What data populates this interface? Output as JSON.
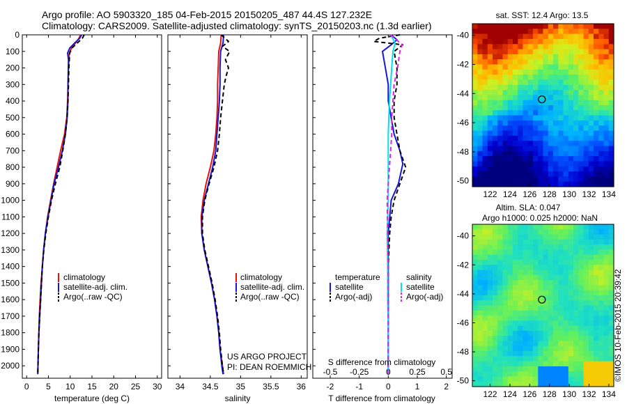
{
  "title": {
    "line1": "Argo profile: AO 5903320_185 04-Feb-2015 20150205_487 44.4S 127.232E",
    "line2": "Climatology: CARS2009. Satellite-adjusted climatology: synTS_20150203.nc (1.3d earlier)"
  },
  "chart_data": [
    {
      "type": "line",
      "id": "temperature",
      "xlabel": "temperature (deg C)",
      "xlim": [
        -1,
        31
      ],
      "xticks": [
        "0",
        "5",
        "10",
        "15",
        "20",
        "25",
        "30"
      ],
      "ylim": [
        2075,
        0
      ],
      "yticks": [
        "0",
        "100",
        "200",
        "300",
        "400",
        "500",
        "600",
        "700",
        "800",
        "900",
        "1000",
        "1100",
        "1200",
        "1300",
        "1400",
        "1500",
        "1600",
        "1700",
        "1800",
        "1900",
        "2000"
      ],
      "legend": [
        "climatology",
        "satellite-adj. clim.",
        "Argo(..raw -QC)"
      ],
      "series": [
        {
          "name": "climatology",
          "color": "#e8120c",
          "points": [
            [
              12.4,
              0
            ],
            [
              12.0,
              20
            ],
            [
              11.2,
              50
            ],
            [
              10.3,
              80
            ],
            [
              9.8,
              110
            ],
            [
              9.6,
              200
            ],
            [
              9.5,
              300
            ],
            [
              9.4,
              400
            ],
            [
              9.2,
              500
            ],
            [
              8.7,
              600
            ],
            [
              7.8,
              700
            ],
            [
              7.0,
              800
            ],
            [
              6.2,
              900
            ],
            [
              5.5,
              1000
            ],
            [
              4.8,
              1100
            ],
            [
              4.3,
              1200
            ],
            [
              3.9,
              1300
            ],
            [
              3.6,
              1400
            ],
            [
              3.3,
              1500
            ],
            [
              3.1,
              1600
            ],
            [
              2.9,
              1700
            ],
            [
              2.8,
              1800
            ],
            [
              2.7,
              1900
            ],
            [
              2.6,
              2000
            ],
            [
              2.55,
              2050
            ]
          ]
        },
        {
          "name": "satellite-adj. clim.",
          "color": "#1515d8",
          "points": [
            [
              12.6,
              0
            ],
            [
              12.2,
              20
            ],
            [
              11.0,
              50
            ],
            [
              9.9,
              80
            ],
            [
              9.4,
              110
            ],
            [
              9.6,
              150
            ],
            [
              9.5,
              300
            ],
            [
              9.5,
              400
            ],
            [
              9.3,
              500
            ],
            [
              8.9,
              600
            ],
            [
              8.2,
              700
            ],
            [
              7.3,
              800
            ],
            [
              6.3,
              900
            ],
            [
              5.6,
              1000
            ],
            [
              4.9,
              1100
            ],
            [
              4.3,
              1200
            ],
            [
              3.9,
              1300
            ],
            [
              3.6,
              1400
            ],
            [
              3.4,
              1500
            ],
            [
              3.2,
              1600
            ],
            [
              3.0,
              1700
            ],
            [
              2.8,
              1800
            ],
            [
              2.7,
              1900
            ],
            [
              2.6,
              2000
            ],
            [
              2.55,
              2050
            ]
          ]
        },
        {
          "name": "Argo(..raw -QC)",
          "color": "#000000",
          "dashed": true,
          "points": [
            [
              13.2,
              0
            ],
            [
              12.8,
              20
            ],
            [
              11.6,
              50
            ],
            [
              10.4,
              80
            ],
            [
              9.9,
              110
            ],
            [
              9.8,
              150
            ],
            [
              9.7,
              200
            ],
            [
              9.6,
              300
            ],
            [
              9.5,
              400
            ],
            [
              9.3,
              500
            ],
            [
              8.9,
              600
            ],
            [
              8.3,
              700
            ],
            [
              7.6,
              800
            ],
            [
              6.6,
              900
            ],
            [
              5.7,
              1000
            ],
            [
              5.0,
              1100
            ],
            [
              4.4,
              1200
            ],
            [
              3.95,
              1300
            ],
            [
              3.6,
              1400
            ],
            [
              3.4,
              1500
            ],
            [
              3.2,
              1600
            ],
            [
              3.0,
              1700
            ],
            [
              2.8,
              1800
            ],
            [
              2.7,
              1900
            ],
            [
              2.6,
              2000
            ],
            [
              2.55,
              2050
            ]
          ]
        }
      ]
    },
    {
      "type": "line",
      "id": "salinity",
      "xlabel": "salinity",
      "xlim": [
        33.8,
        36.1
      ],
      "xticks": [
        "34",
        "34.5",
        "35",
        "35.5",
        "36"
      ],
      "ylim": [
        2075,
        0
      ],
      "legend": [
        "climatology",
        "satellite-adj. clim.",
        "Argo(..raw -QC)"
      ],
      "series": [
        {
          "name": "climatology",
          "color": "#e8120c",
          "points": [
            [
              34.68,
              0
            ],
            [
              34.67,
              50
            ],
            [
              34.64,
              100
            ],
            [
              34.63,
              200
            ],
            [
              34.62,
              300
            ],
            [
              34.62,
              400
            ],
            [
              34.61,
              500
            ],
            [
              34.59,
              600
            ],
            [
              34.56,
              700
            ],
            [
              34.5,
              800
            ],
            [
              34.43,
              900
            ],
            [
              34.38,
              1000
            ],
            [
              34.35,
              1100
            ],
            [
              34.36,
              1200
            ],
            [
              34.4,
              1300
            ],
            [
              34.46,
              1400
            ],
            [
              34.52,
              1500
            ],
            [
              34.57,
              1600
            ],
            [
              34.61,
              1700
            ],
            [
              34.64,
              1800
            ],
            [
              34.66,
              1900
            ],
            [
              34.7,
              2000
            ],
            [
              34.72,
              2050
            ]
          ]
        },
        {
          "name": "satellite-adj. clim.",
          "color": "#1515d8",
          "points": [
            [
              34.72,
              0
            ],
            [
              34.71,
              50
            ],
            [
              34.67,
              100
            ],
            [
              34.66,
              200
            ],
            [
              34.66,
              300
            ],
            [
              34.65,
              400
            ],
            [
              34.63,
              500
            ],
            [
              34.61,
              600
            ],
            [
              34.59,
              700
            ],
            [
              34.54,
              800
            ],
            [
              34.47,
              900
            ],
            [
              34.4,
              1000
            ],
            [
              34.36,
              1100
            ],
            [
              34.36,
              1200
            ],
            [
              34.4,
              1300
            ],
            [
              34.46,
              1400
            ],
            [
              34.52,
              1500
            ],
            [
              34.57,
              1600
            ],
            [
              34.61,
              1700
            ],
            [
              34.64,
              1800
            ],
            [
              34.66,
              1900
            ],
            [
              34.69,
              2000
            ],
            [
              34.71,
              2050
            ]
          ]
        },
        {
          "name": "Argo(..raw -QC)",
          "color": "#000000",
          "dashed": true,
          "points": [
            [
              34.68,
              0
            ],
            [
              34.8,
              40
            ],
            [
              34.7,
              70
            ],
            [
              34.82,
              100
            ],
            [
              34.75,
              150
            ],
            [
              34.8,
              200
            ],
            [
              34.76,
              250
            ],
            [
              34.73,
              300
            ],
            [
              34.7,
              400
            ],
            [
              34.67,
              500
            ],
            [
              34.65,
              600
            ],
            [
              34.62,
              700
            ],
            [
              34.56,
              800
            ],
            [
              34.48,
              900
            ],
            [
              34.41,
              1000
            ],
            [
              34.37,
              1100
            ],
            [
              34.37,
              1200
            ],
            [
              34.41,
              1300
            ],
            [
              34.47,
              1400
            ],
            [
              34.53,
              1500
            ],
            [
              34.58,
              1600
            ],
            [
              34.62,
              1700
            ],
            [
              34.65,
              1800
            ],
            [
              34.67,
              1900
            ],
            [
              34.7,
              2000
            ],
            [
              34.72,
              2050
            ]
          ]
        }
      ],
      "annotation": [
        "US ARGO PROJECT",
        "PI: DEAN ROEMMICH"
      ]
    },
    {
      "type": "line",
      "id": "difference",
      "xlabel": "T difference from climatology",
      "xlabel2": "S difference from climatology",
      "xlim": [
        -2.6,
        2.2
      ],
      "xticks": [
        "-2",
        "-1",
        "0",
        "1",
        "2"
      ],
      "xlim2": [
        -0.65,
        0.55
      ],
      "xticks2": [
        "-0.5",
        "-0.25",
        "0",
        "0.25",
        "0.5"
      ],
      "ylim": [
        2075,
        0
      ],
      "legend_temperature_heading": "temperature",
      "legend_salinity_heading": "salinity",
      "legend_temperature": [
        "satellite",
        "Argo(-adj)"
      ],
      "legend_salinity": [
        "satellite",
        "Argo(-adj)"
      ],
      "series": [
        {
          "name": "T satellite",
          "color": "#1515d8",
          "axis": "T",
          "points": [
            [
              0.1,
              0
            ],
            [
              0.3,
              30
            ],
            [
              0.1,
              60
            ],
            [
              -0.2,
              100
            ],
            [
              -0.1,
              200
            ],
            [
              0,
              300
            ],
            [
              0,
              400
            ],
            [
              0.1,
              500
            ],
            [
              0.2,
              600
            ],
            [
              0.4,
              700
            ],
            [
              0.5,
              780
            ],
            [
              0.35,
              900
            ],
            [
              0.1,
              1000
            ],
            [
              0.05,
              1100
            ],
            [
              0,
              1200
            ],
            [
              0,
              1400
            ],
            [
              0,
              1600
            ],
            [
              0,
              1800
            ],
            [
              0,
              2000
            ],
            [
              0,
              2050
            ]
          ]
        },
        {
          "name": "T Argo(-adj)",
          "color": "#000000",
          "dashed": true,
          "axis": "T",
          "points": [
            [
              0.4,
              0
            ],
            [
              -0.3,
              20
            ],
            [
              -0.5,
              40
            ],
            [
              0.5,
              60
            ],
            [
              0.2,
              100
            ],
            [
              0.3,
              200
            ],
            [
              0.3,
              300
            ],
            [
              0.2,
              400
            ],
            [
              0.2,
              500
            ],
            [
              0.3,
              600
            ],
            [
              0.4,
              700
            ],
            [
              0.6,
              800
            ],
            [
              0.4,
              900
            ],
            [
              0.2,
              1000
            ],
            [
              0.1,
              1100
            ],
            [
              0.05,
              1200
            ],
            [
              0,
              1400
            ],
            [
              0,
              1600
            ],
            [
              0,
              1800
            ],
            [
              0,
              2000
            ],
            [
              0,
              2050
            ]
          ]
        },
        {
          "name": "S satellite",
          "color": "#00e0f0",
          "axis": "S",
          "points": [
            [
              0.02,
              0
            ],
            [
              0.06,
              50
            ],
            [
              0.04,
              100
            ],
            [
              0.03,
              200
            ],
            [
              0.02,
              300
            ],
            [
              0.01,
              400
            ],
            [
              0.0,
              600
            ],
            [
              0.0,
              800
            ],
            [
              0.0,
              1000
            ],
            [
              -0.01,
              1200
            ],
            [
              -0.005,
              1400
            ],
            [
              -0.005,
              1600
            ],
            [
              0,
              1800
            ],
            [
              0,
              2000
            ],
            [
              0,
              2050
            ]
          ]
        },
        {
          "name": "S Argo(-adj)",
          "color": "#e020e0",
          "dashed": true,
          "axis": "S",
          "points": [
            [
              0.02,
              0
            ],
            [
              0.12,
              60
            ],
            [
              0.1,
              100
            ],
            [
              0.08,
              200
            ],
            [
              0.05,
              300
            ],
            [
              0.04,
              400
            ],
            [
              0.03,
              500
            ],
            [
              0.03,
              600
            ],
            [
              0.02,
              700
            ],
            [
              0.01,
              800
            ],
            [
              0,
              900
            ],
            [
              -0.01,
              1000
            ],
            [
              -0.005,
              1200
            ],
            [
              0,
              1400
            ],
            [
              0,
              1600
            ],
            [
              0,
              1800
            ],
            [
              0,
              2000
            ],
            [
              0,
              2050
            ]
          ]
        }
      ]
    },
    {
      "type": "heatmap",
      "id": "sst-map",
      "title": "sat. SST: 12.4  Argo: 13.5",
      "xticks": [
        "122",
        "124",
        "126",
        "128",
        "130",
        "132",
        "134"
      ],
      "yticks": [
        "-40",
        "-42",
        "-44",
        "-46",
        "-48",
        "-50"
      ],
      "xlim": [
        120.2,
        134.5
      ],
      "ylim": [
        -50.4,
        -39.2
      ],
      "marker": [
        127.232,
        -44.4
      ]
    },
    {
      "type": "heatmap",
      "id": "sla-map",
      "title_line1": "Altim. SLA: 0.047",
      "title_line2": "Argo h1000: 0.025  h2000: NaN",
      "xticks": [
        "122",
        "124",
        "126",
        "128",
        "130",
        "132",
        "134"
      ],
      "yticks": [
        "-40",
        "-42",
        "-44",
        "-46",
        "-48",
        "-50"
      ],
      "xlim": [
        120.2,
        134.5
      ],
      "ylim": [
        -50.4,
        -39.2
      ],
      "marker": [
        127.232,
        -44.4
      ]
    }
  ],
  "side_label": "©IMOS 10-Feb-2015 20:39:42"
}
